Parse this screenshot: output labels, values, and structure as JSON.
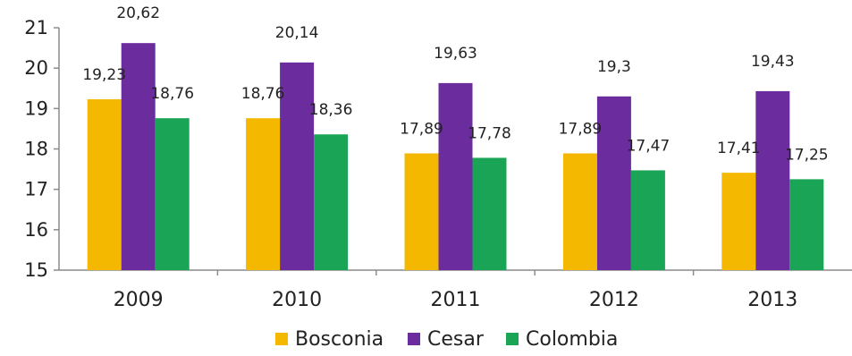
{
  "chart_data": {
    "type": "bar",
    "categories": [
      "2009",
      "2010",
      "2011",
      "2012",
      "2013"
    ],
    "series": [
      {
        "name": "Bosconia",
        "color": "#F4B800",
        "values": [
          19.23,
          18.76,
          17.89,
          17.89,
          17.41
        ],
        "labels": [
          "19,23",
          "18,76",
          "17,89",
          "17,89",
          "17,41"
        ]
      },
      {
        "name": "Cesar",
        "color": "#6B2C9E",
        "values": [
          20.62,
          20.14,
          19.63,
          19.3,
          19.43
        ],
        "labels": [
          "20,62",
          "20,14",
          "19,63",
          "19,3",
          "19,43"
        ]
      },
      {
        "name": "Colombia",
        "color": "#1AA455",
        "values": [
          18.76,
          18.36,
          17.78,
          17.47,
          17.25
        ],
        "labels": [
          "18,76",
          "18,36",
          "17,78",
          "17,47",
          "17,25"
        ]
      }
    ],
    "ylim": [
      15,
      21
    ],
    "yticks": [
      "15",
      "16",
      "17",
      "18",
      "19",
      "20",
      "21"
    ],
    "grid": false,
    "legend_position": "bottom"
  }
}
